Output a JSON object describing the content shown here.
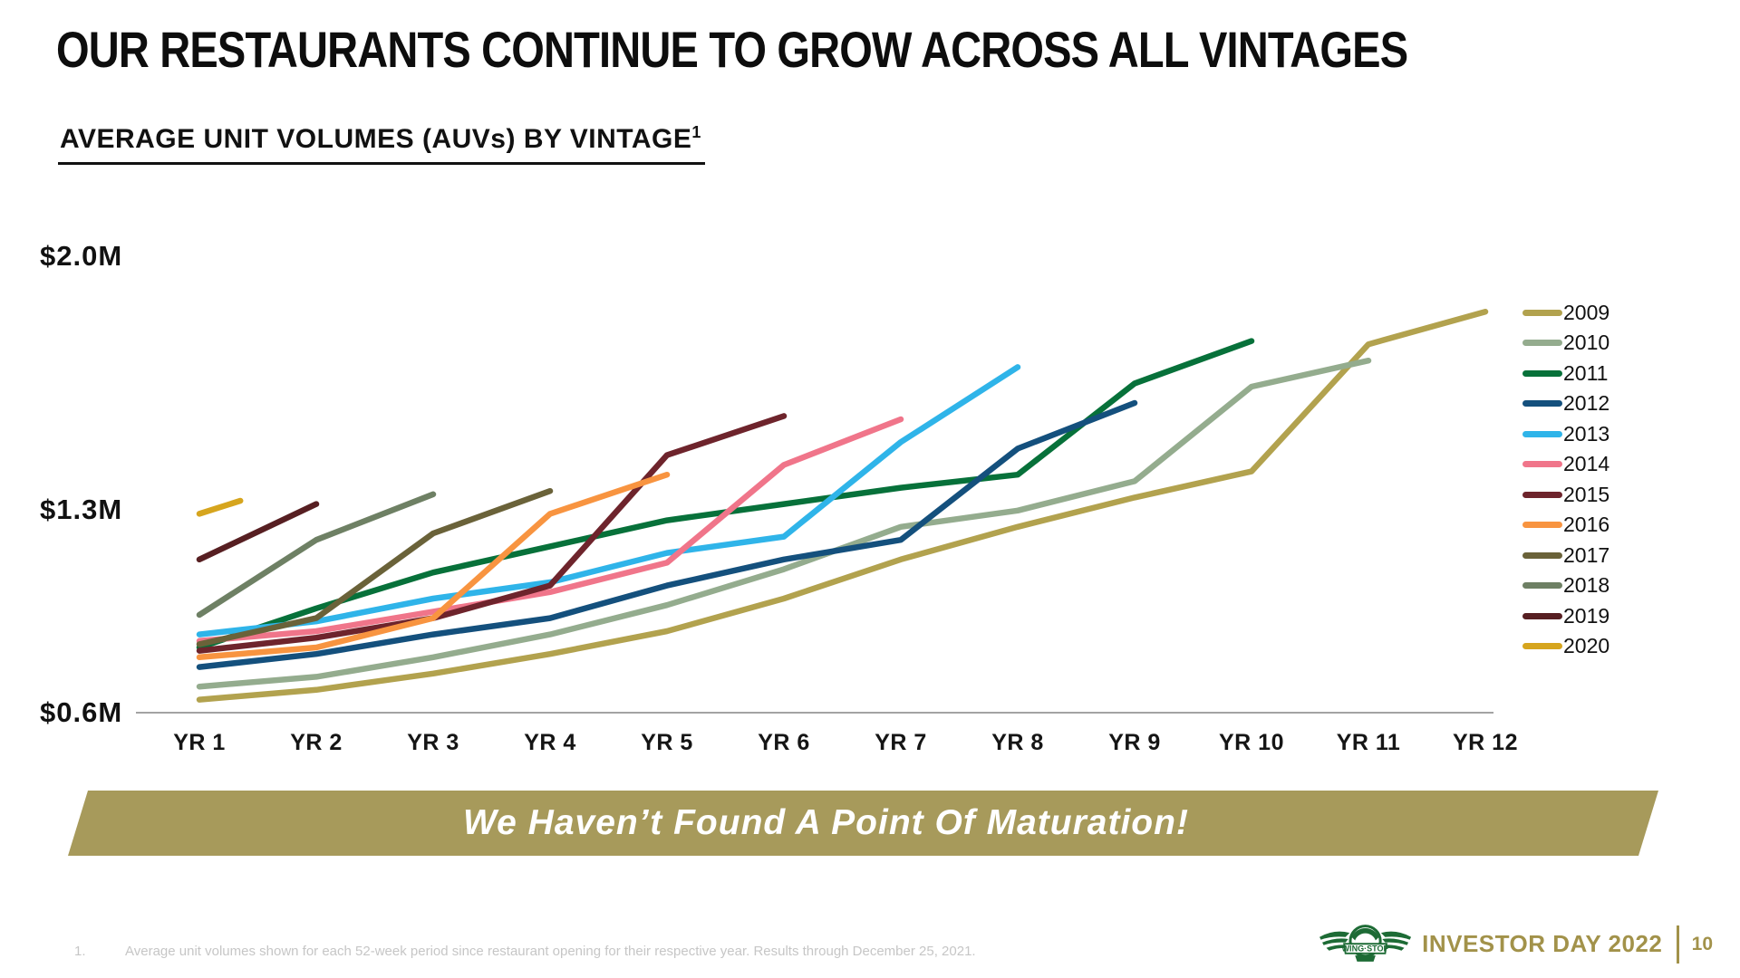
{
  "slide": {
    "title": "OUR RESTAURANTS CONTINUE TO GROW ACROSS ALL VINTAGES",
    "subtitle": "AVERAGE UNIT VOLUMES (AUVs) BY VINTAGE",
    "subtitle_superscript": "1",
    "banner_text": "We Haven’t Found A Point Of Maturation!",
    "footnote_marker": "1.",
    "footnote": "Average unit volumes shown for each 52-week period since restaurant opening for their respective year. Results through December 25, 2021.",
    "footer_brand": "INVESTOR DAY 2022",
    "page_number": "10",
    "logo_text": "WING·STOP"
  },
  "colors": {
    "banner_olive": "#a79a5b",
    "footer_olive": "#a2924a",
    "logo_green": "#1d6b35",
    "axis_gray": "#a3a3a3",
    "footnote_gray": "#c6c6c6"
  },
  "chart_data": {
    "type": "line",
    "title": "AVERAGE UNIT VOLUMES (AUVs) BY VINTAGE",
    "x_ticks": [
      "YR 1",
      "YR 2",
      "YR 3",
      "YR 4",
      "YR 5",
      "YR 6",
      "YR 7",
      "YR 8",
      "YR 9",
      "YR 10",
      "YR 11",
      "YR 12"
    ],
    "y_ticks": [
      "$2.0M",
      "$1.3M",
      "$0.6M"
    ],
    "y_tick_values": [
      2.0,
      1.3,
      0.6
    ],
    "ylim": [
      0.6,
      2.0
    ],
    "x_unit": "52-week periods since restaurant opening",
    "value_unit": "$M AUV",
    "legend_position": "right",
    "grid": false,
    "series": [
      {
        "name": "2009",
        "color": "#b2a24e",
        "values": [
          0.64,
          0.67,
          0.72,
          0.78,
          0.85,
          0.95,
          1.07,
          1.17,
          1.26,
          1.34,
          1.73,
          1.83
        ]
      },
      {
        "name": "2010",
        "color": "#94ac8e",
        "values": [
          0.68,
          0.71,
          0.77,
          0.84,
          0.93,
          1.04,
          1.17,
          1.22,
          1.31,
          1.6,
          1.68
        ]
      },
      {
        "name": "2011",
        "color": "#07713a",
        "values": [
          0.8,
          0.92,
          1.03,
          1.11,
          1.19,
          1.24,
          1.29,
          1.33,
          1.61,
          1.74
        ]
      },
      {
        "name": "2012",
        "color": "#14507d",
        "values": [
          0.74,
          0.78,
          0.84,
          0.89,
          0.99,
          1.07,
          1.13,
          1.41,
          1.55
        ]
      },
      {
        "name": "2013",
        "color": "#2fb4e9",
        "values": [
          0.84,
          0.88,
          0.95,
          1.0,
          1.09,
          1.14,
          1.43,
          1.66
        ]
      },
      {
        "name": "2014",
        "color": "#f0758a",
        "values": [
          0.82,
          0.85,
          0.91,
          0.97,
          1.06,
          1.36,
          1.5
        ]
      },
      {
        "name": "2015",
        "color": "#6e242c",
        "values": [
          0.79,
          0.83,
          0.89,
          0.99,
          1.39,
          1.51
        ]
      },
      {
        "name": "2016",
        "color": "#f89440",
        "values": [
          0.77,
          0.8,
          0.89,
          1.21,
          1.33
        ]
      },
      {
        "name": "2017",
        "color": "#6a6239",
        "values": [
          0.81,
          0.89,
          1.15,
          1.28
        ]
      },
      {
        "name": "2018",
        "color": "#6e8064",
        "values": [
          0.9,
          1.13,
          1.27
        ]
      },
      {
        "name": "2019",
        "color": "#571f22",
        "values": [
          1.07,
          1.24
        ]
      },
      {
        "name": "2020",
        "color": "#d6a51e",
        "x": [
          1,
          1.35
        ],
        "values": [
          1.21,
          1.25
        ]
      }
    ]
  }
}
